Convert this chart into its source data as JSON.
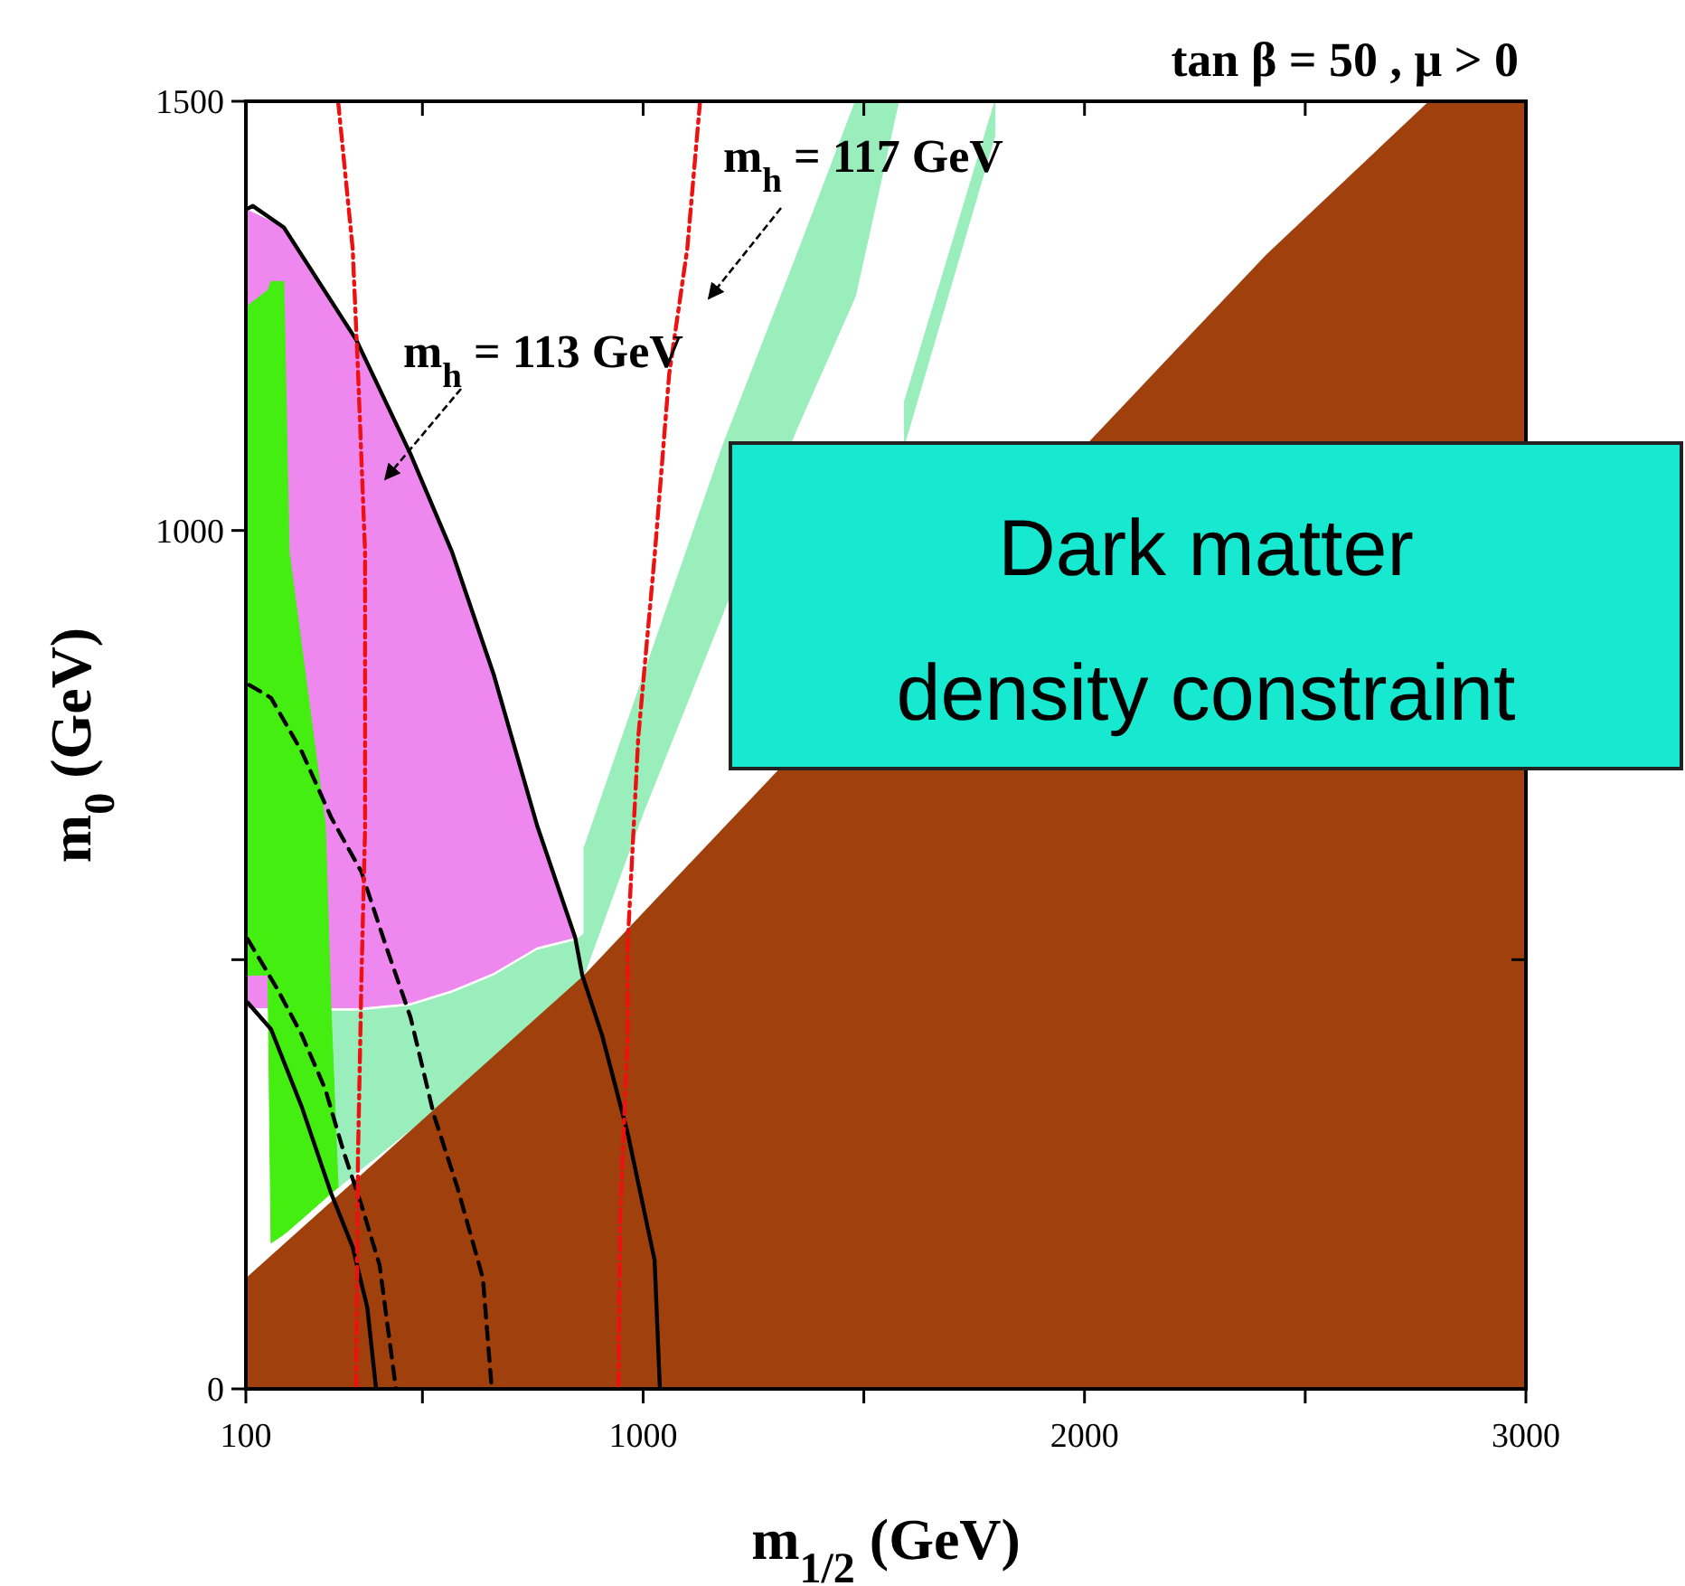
{
  "chart_data": {
    "type": "line",
    "title": "tan β = 50 ,  μ > 0",
    "xlabel": "m$_{1/2}$ (GeV)",
    "ylabel": "m$_{0}$ (GeV)",
    "xlim": [
      100,
      3000
    ],
    "ylim": [
      0,
      1500
    ],
    "xticks": [
      100,
      {
        "value": 500,
        "label": null
      },
      1000,
      {
        "value": 1500,
        "label": null
      },
      2000,
      {
        "value": 2500,
        "label": null
      },
      3000
    ],
    "yticks": [
      0,
      {
        "value": 500,
        "label": null
      },
      1000,
      1500
    ],
    "grid": false,
    "series": [
      {
        "type": "area",
        "color": "#99eebb",
        "x": [
          293,
          350,
          473,
          567,
          661,
          760,
          846,
          866,
          866,
          700,
          500,
          293
        ],
        "values": [
          440,
          440,
          446,
          461,
          481,
          511,
          522,
          530,
          482,
          405,
          313,
          228
        ]
      },
      {
        "type": "area",
        "color": "#ee88ee",
        "x": [
          100,
          186,
          350,
          473,
          567,
          661,
          760,
          846,
          760,
          661,
          567,
          473,
          350,
          100
        ],
        "values": [
          1374,
          1353,
          1222,
          1089,
          975,
          833,
          656,
          526,
          515,
          485,
          465,
          450,
          444,
          444
        ]
      },
      {
        "type": "area",
        "color": "#44ee11",
        "x": [
          100,
          150,
          157,
          186,
          198,
          280,
          293,
          309,
          293,
          280,
          198,
          186,
          157,
          150,
          100
        ],
        "values": [
          1260,
          1280,
          1290,
          1290,
          975,
          657,
          440,
          235,
          228,
          222,
          185,
          180,
          170,
          482,
          482
        ]
      },
      {
        "type": "area",
        "color": "#99eebb",
        "x": [
          866,
          1000,
          1182,
          1346,
          1481,
          1579,
          1481,
          1346,
          1182,
          1000,
          866
        ],
        "values": [
          630,
          830,
          1101,
          1318,
          1500,
          1500,
          1273,
          1116,
          905,
          671,
          482
        ]
      },
      {
        "type": "area",
        "color": "#99eebb",
        "x": [
          1592,
          1797,
          1797,
          1592
        ],
        "values": [
          1150,
          1500,
          1460,
          1100
        ]
      },
      {
        "type": "area",
        "color": "#a0410d",
        "x": [
          100,
          866,
          2411,
          2780,
          3000
        ],
        "values": [
          129,
          482,
          1321,
          1500,
          1500
        ]
      },
      {
        "color": "#000000",
        "line_style": "solid",
        "x": [
          100,
          116,
          186,
          350,
          473,
          567,
          661,
          760,
          846,
          862,
          907,
          965,
          1026,
          1038
        ],
        "values": [
          1374,
          1378,
          1353,
          1222,
          1089,
          975,
          833,
          656,
          526,
          482,
          412,
          298,
          150,
          0
        ]
      },
      {
        "color": "#000000",
        "line_style": "solid",
        "x": [
          104,
          157,
          227,
          293,
          342,
          375,
          395
        ],
        "values": [
          450,
          419,
          328,
          228,
          165,
          95,
          0
        ]
      },
      {
        "color": "#000000",
        "line_style": "dashed",
        "x": [
          108,
          157,
          227,
          293,
          362,
          416,
          473,
          526,
          579,
          637,
          657
        ],
        "values": [
          820,
          805,
          742,
          666,
          602,
          518,
          433,
          319,
          235,
          129,
          0
        ]
      },
      {
        "color": "#000000",
        "line_style": "dashed",
        "x": [
          104,
          170,
          227,
          280,
          321,
          362,
          403,
          440
        ],
        "values": [
          524,
          467,
          412,
          349,
          277,
          214,
          144,
          0
        ]
      },
      {
        "color": "#ee1111",
        "line_style": "dotted",
        "x": [
          309,
          342,
          354,
          370,
          370,
          362,
          354,
          350
        ],
        "values": [
          1500,
          1328,
          1186,
          975,
          651,
          482,
          271,
          0
        ]
      },
      {
        "color": "#ee1111",
        "line_style": "dotted",
        "x": [
          1129,
          1100,
          1059,
          1026,
          989,
          965,
          965,
          948,
          944
        ],
        "values": [
          1500,
          1328,
          1182,
          970,
          759,
          518,
          412,
          201,
          0
        ]
      }
    ],
    "annotations": [
      "m$_{h}$ = 113 GeV",
      "m$_{h}$ = 117 GeV",
      "Dark matter density constraint"
    ]
  }
}
